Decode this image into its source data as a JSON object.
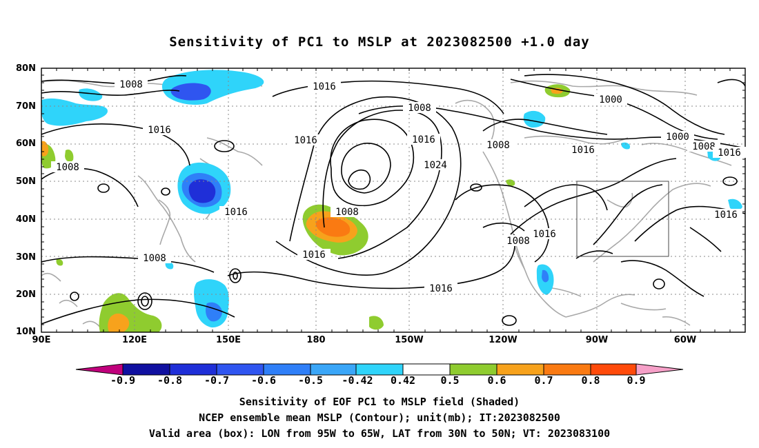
{
  "title": "Sensitivity of PC1 to MSLP at 2023082500 +1.0 day",
  "axes": {
    "lat_labels": [
      "80N",
      "70N",
      "60N",
      "50N",
      "40N",
      "30N",
      "20N",
      "10N"
    ],
    "lon_labels": [
      "90E",
      "120E",
      "150E",
      "180",
      "150W",
      "120W",
      "90W",
      "60W"
    ]
  },
  "contour_labels": [
    {
      "text": "1008"
    },
    {
      "text": "1016"
    },
    {
      "text": "1016"
    },
    {
      "text": "1008"
    },
    {
      "text": "1016"
    },
    {
      "text": "1008"
    },
    {
      "text": "1016"
    },
    {
      "text": "1024"
    },
    {
      "text": "1008"
    },
    {
      "text": "1016"
    },
    {
      "text": "1008"
    },
    {
      "text": "1000"
    },
    {
      "text": "1000"
    },
    {
      "text": "1008"
    },
    {
      "text": "1016"
    },
    {
      "text": "1016"
    },
    {
      "text": "1016"
    },
    {
      "text": "1008"
    },
    {
      "text": "1016"
    },
    {
      "text": "1016"
    },
    {
      "text": "1008"
    },
    {
      "text": "1016"
    }
  ],
  "colorbar": {
    "colors": [
      "#c0007c",
      "#1010a0",
      "#1f2fd8",
      "#2f55f0",
      "#2f7ff8",
      "#3aa6f8",
      "#2fd4fa",
      "#ffffff",
      "#8fcc2f",
      "#f7a21c",
      "#fa7a12",
      "#ff4a0a",
      "#ff2e00",
      "#ff0000",
      "#f6a0c8"
    ],
    "labels": [
      "-0.9",
      "-0.8",
      "-0.7",
      "-0.6",
      "-0.5",
      "-0.42",
      "0.42",
      "0.5",
      "0.6",
      "0.7",
      "0.8",
      "0.9"
    ]
  },
  "captions": {
    "line1": "Sensitivity of EOF PC1 to MSLP field (Shaded)",
    "line2": "NCEP ensemble mean MSLP (Contour); unit(mb); IT:2023082500",
    "line3": "Valid area (box): LON from 95W to 65W, LAT from 30N to 50N; VT: 2023083100"
  }
}
